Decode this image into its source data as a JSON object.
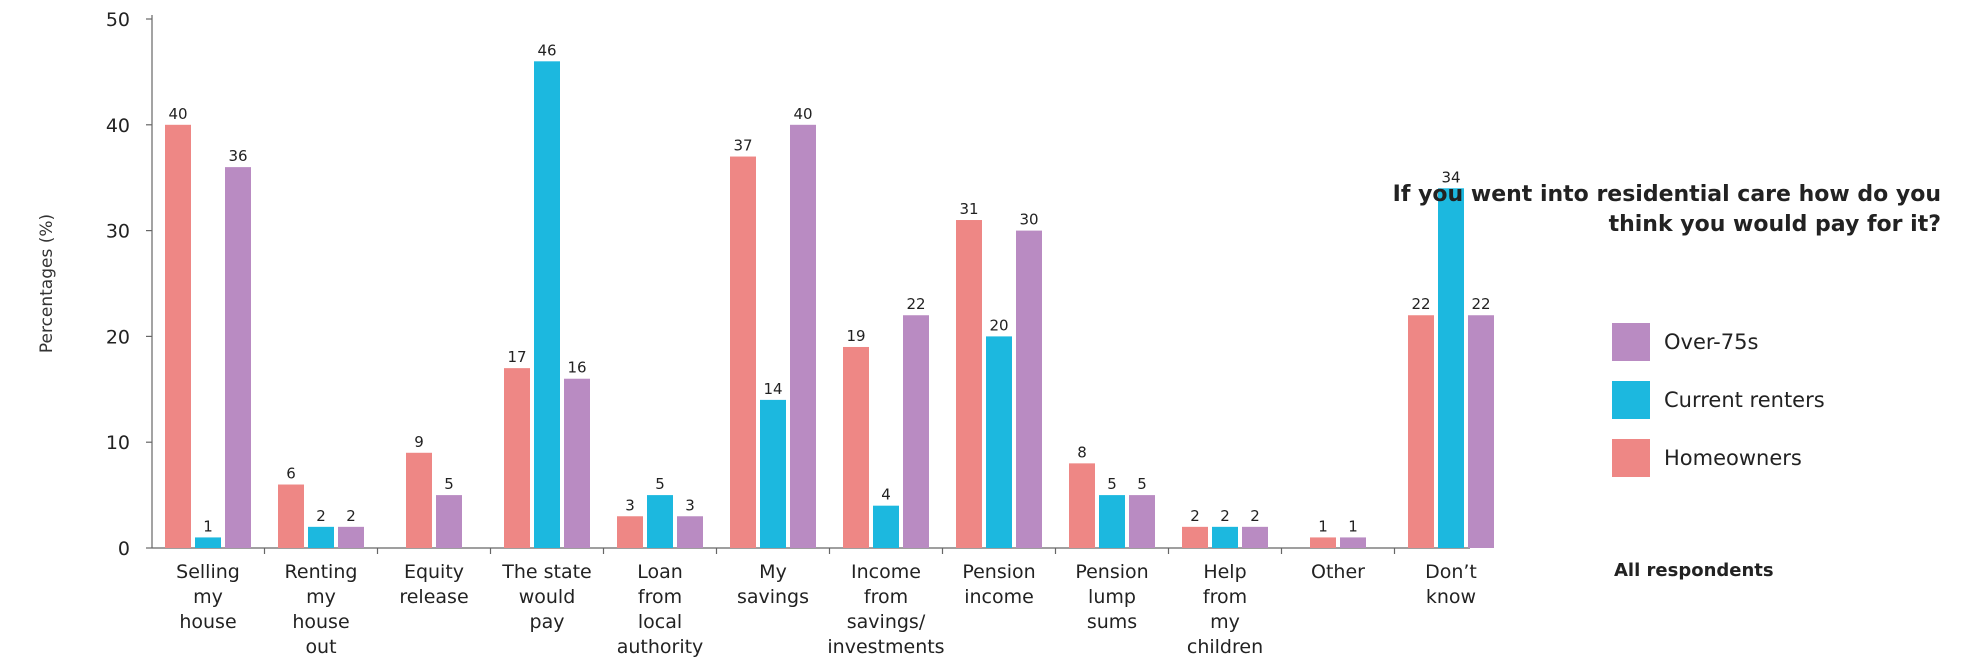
{
  "chart_data": {
    "type": "bar",
    "title": "If you went into residential care how do you think you would pay for it?",
    "ylabel": "Percentages (%)",
    "xlabel": "",
    "ylim": [
      0,
      50
    ],
    "yticks": [
      0,
      10,
      20,
      30,
      40,
      50
    ],
    "grid": false,
    "legend_position": "right",
    "note": "All respondents",
    "categories": [
      [
        "Selling",
        "my",
        "house"
      ],
      [
        "Renting",
        "my",
        "house",
        "out"
      ],
      [
        "Equity",
        "release"
      ],
      [
        "The state",
        "would",
        "pay"
      ],
      [
        "Loan",
        "from",
        "local",
        "authority"
      ],
      [
        "My",
        "savings"
      ],
      [
        "Income",
        "from",
        "savings/",
        "investments"
      ],
      [
        "Pension",
        "income"
      ],
      [
        "Pension",
        "lump",
        "sums"
      ],
      [
        "Help",
        "from",
        "my",
        "children"
      ],
      [
        "Other"
      ],
      [
        "Don’t",
        "know"
      ]
    ],
    "series": [
      {
        "name": "Homeowners",
        "color": "#ee8785",
        "values": [
          40,
          6,
          9,
          17,
          3,
          37,
          19,
          31,
          8,
          2,
          1,
          22
        ]
      },
      {
        "name": "Current renters",
        "color": "#1cb8df",
        "values": [
          1,
          2,
          null,
          46,
          5,
          14,
          4,
          20,
          5,
          2,
          null,
          34
        ]
      },
      {
        "name": "Over-75s",
        "color": "#b98bc2",
        "values": [
          36,
          2,
          5,
          16,
          3,
          40,
          22,
          30,
          5,
          2,
          1,
          22
        ]
      }
    ],
    "legend_order": [
      "Over-75s",
      "Current renters",
      "Homeowners"
    ]
  }
}
